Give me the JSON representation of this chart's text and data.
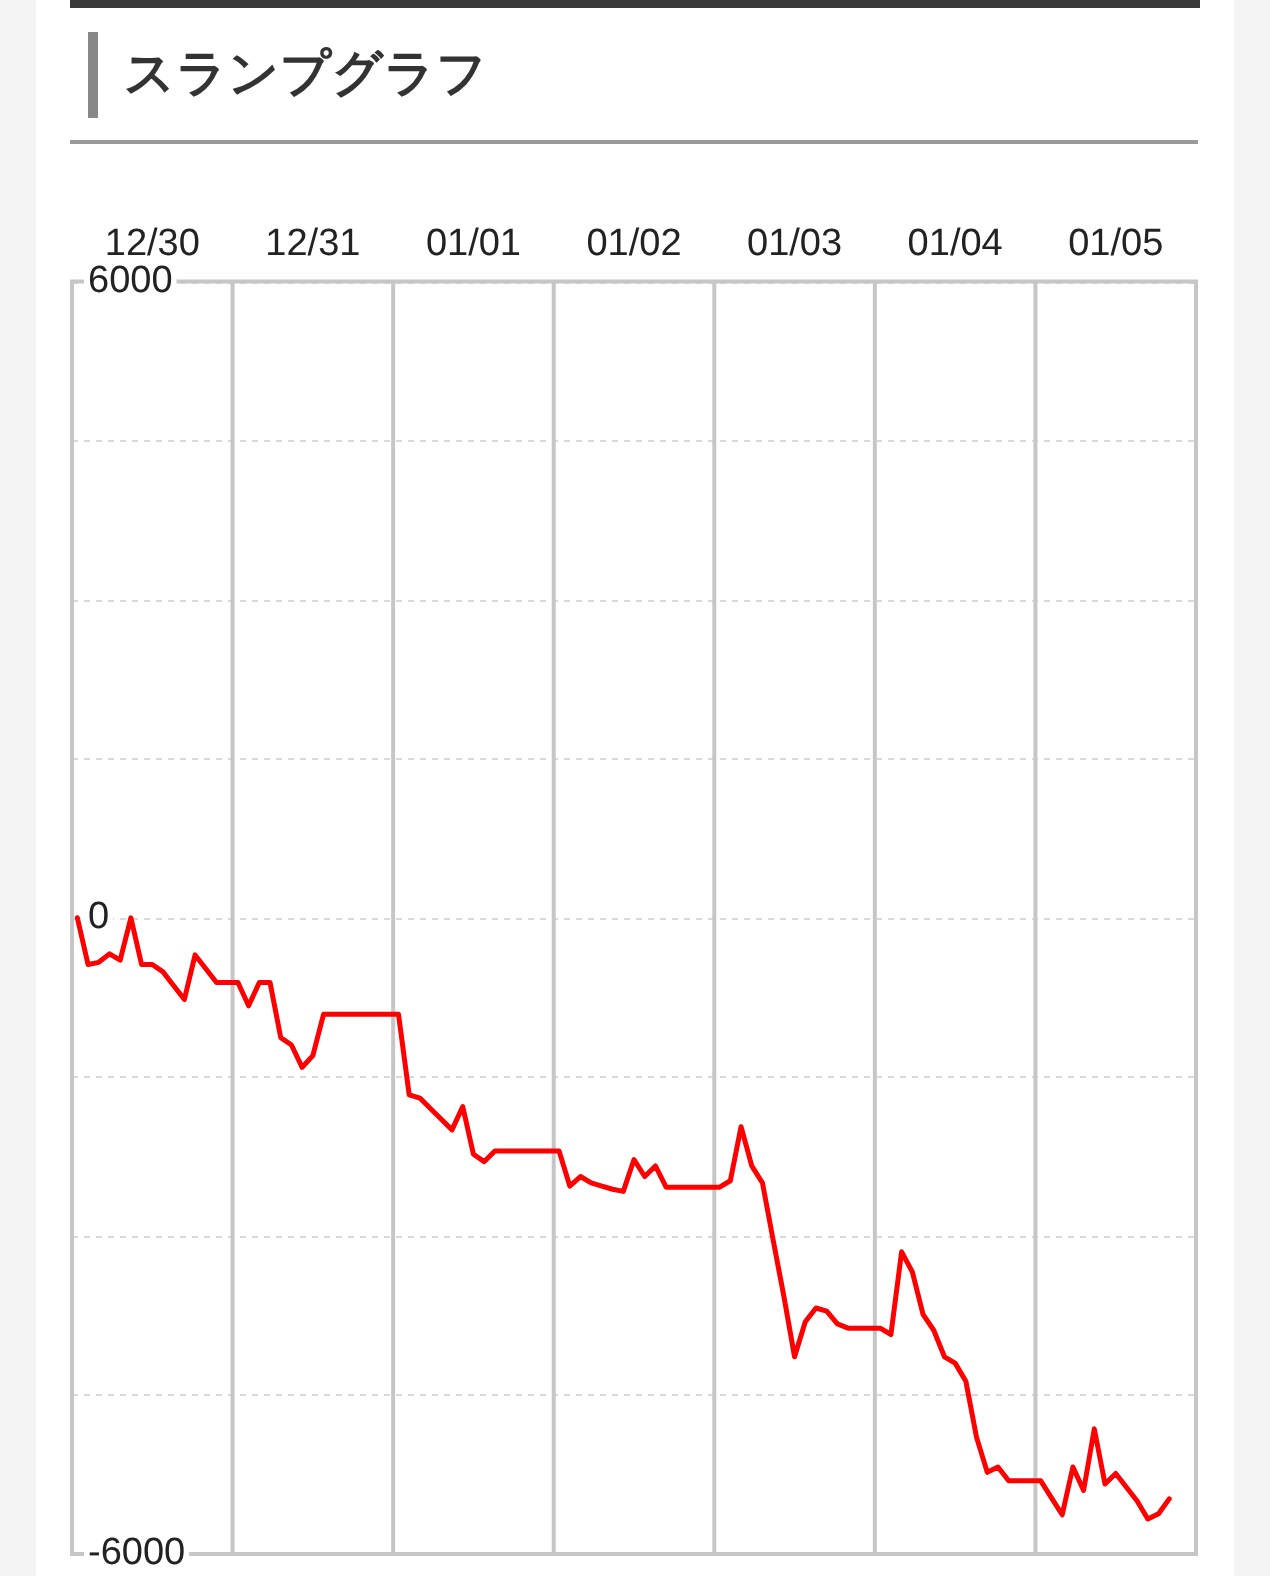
{
  "chart_data": {
    "type": "line",
    "title": "スランプグラフ",
    "categories": [
      null,
      null,
      null,
      null,
      null,
      null,
      null,
      "12/30",
      null,
      null,
      null,
      null,
      null,
      null,
      null,
      null,
      null,
      null,
      null,
      null,
      null,
      null,
      "12/31",
      null,
      null,
      null,
      null,
      null,
      null,
      null,
      null,
      null,
      null,
      null,
      null,
      null,
      null,
      "01/01",
      null,
      null,
      null,
      null,
      null,
      null,
      null,
      null,
      null,
      null,
      null,
      null,
      null,
      null,
      "01/02",
      null,
      null,
      null,
      null,
      null,
      null,
      null,
      null,
      null,
      null,
      null,
      null,
      null,
      null,
      "01/03",
      null,
      null,
      null,
      null,
      null,
      null,
      null,
      null,
      null,
      null,
      null,
      null,
      null,
      null,
      "01/04",
      null,
      null,
      null,
      null,
      null,
      null,
      null,
      null,
      null,
      null,
      null,
      null,
      null,
      null,
      "01/05",
      null,
      null,
      null,
      null,
      null,
      null,
      null
    ],
    "series": [
      {
        "color": "#ff0000",
        "values": [
          0,
          -440,
          -420,
          -340,
          -400,
          0,
          -440,
          -440,
          -510,
          -640,
          -770,
          -350,
          -480,
          -610,
          -610,
          -610,
          -830,
          -610,
          -610,
          -1130,
          -1200,
          -1410,
          -1300,
          -910,
          -910,
          -910,
          -910,
          -910,
          -910,
          -910,
          -910,
          -1670,
          -1700,
          -1800,
          -1900,
          -2000,
          -1780,
          -2230,
          -2300,
          -2200,
          -2200,
          -2200,
          -2200,
          -2200,
          -2200,
          -2200,
          -2530,
          -2440,
          -2500,
          -2530,
          -2560,
          -2580,
          -2280,
          -2440,
          -2340,
          -2540,
          -2540,
          -2540,
          -2540,
          -2540,
          -2540,
          -2480,
          -1970,
          -2340,
          -2500,
          -3040,
          -3570,
          -4140,
          -3810,
          -3680,
          -3710,
          -3830,
          -3870,
          -3870,
          -3870,
          -3870,
          -3930,
          -3150,
          -3340,
          -3740,
          -3890,
          -4140,
          -4200,
          -4370,
          -4900,
          -5230,
          -5180,
          -5310,
          -5310,
          -5310,
          -5310,
          -5470,
          -5630,
          -5180,
          -5400,
          -4820,
          -5340,
          -5240,
          -5370,
          -5500,
          -5670,
          -5620,
          -5480,
          null,
          null
        ]
      }
    ],
    "ylim": [
      -6000,
      6000
    ],
    "yticks": [
      6000,
      {
        "value": 4500,
        "label": null
      },
      {
        "value": 3000,
        "label": null
      },
      {
        "value": 1500,
        "label": null
      },
      0,
      {
        "value": -1500,
        "label": null
      },
      {
        "value": -3000,
        "label": null
      },
      {
        "value": -4500,
        "label": null
      },
      -6000
    ],
    "grid": true,
    "legend": false,
    "marker": "none",
    "line_style": "solid"
  }
}
